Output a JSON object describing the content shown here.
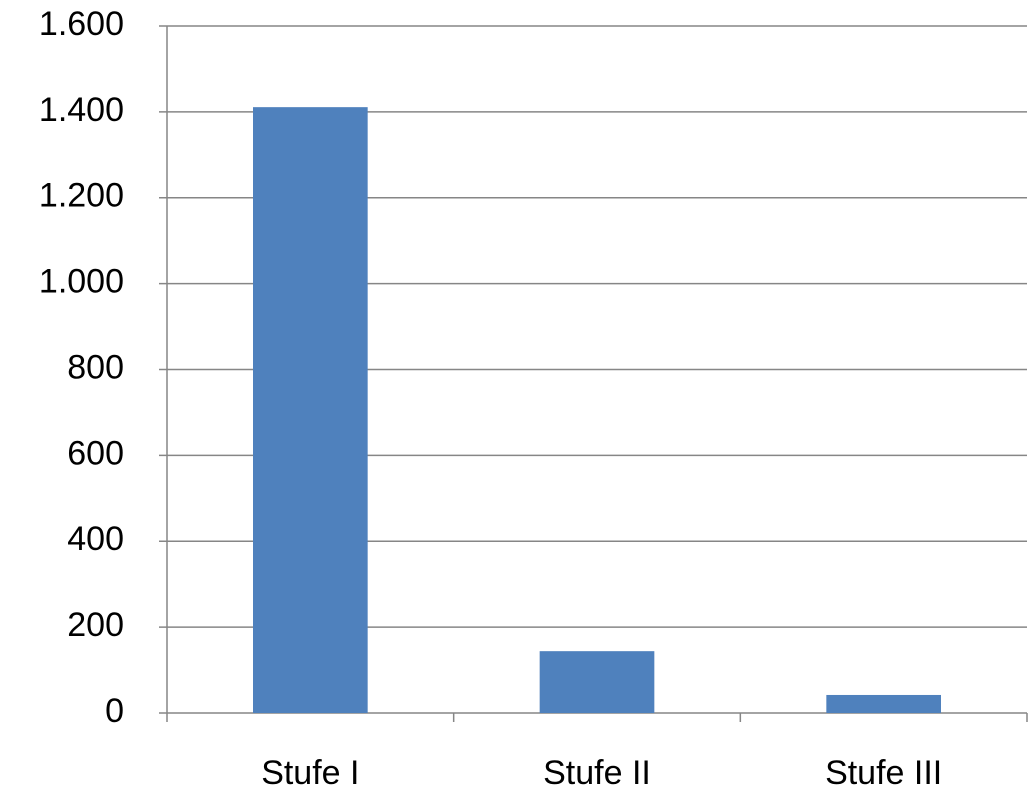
{
  "chart_data": {
    "type": "bar",
    "categories": [
      "Stufe I",
      "Stufe II",
      "Stufe III"
    ],
    "values": [
      1411,
      144,
      42
    ],
    "color": "#4f81bd",
    "ylim": [
      0,
      1600
    ],
    "yticks": [
      0,
      200,
      400,
      600,
      800,
      {
        "value": 1000,
        "label": "1.000"
      },
      {
        "value": 1200,
        "label": "1.200"
      },
      {
        "value": 1400,
        "label": "1.400"
      },
      {
        "value": 1600,
        "label": "1.600"
      }
    ],
    "grid": true
  }
}
